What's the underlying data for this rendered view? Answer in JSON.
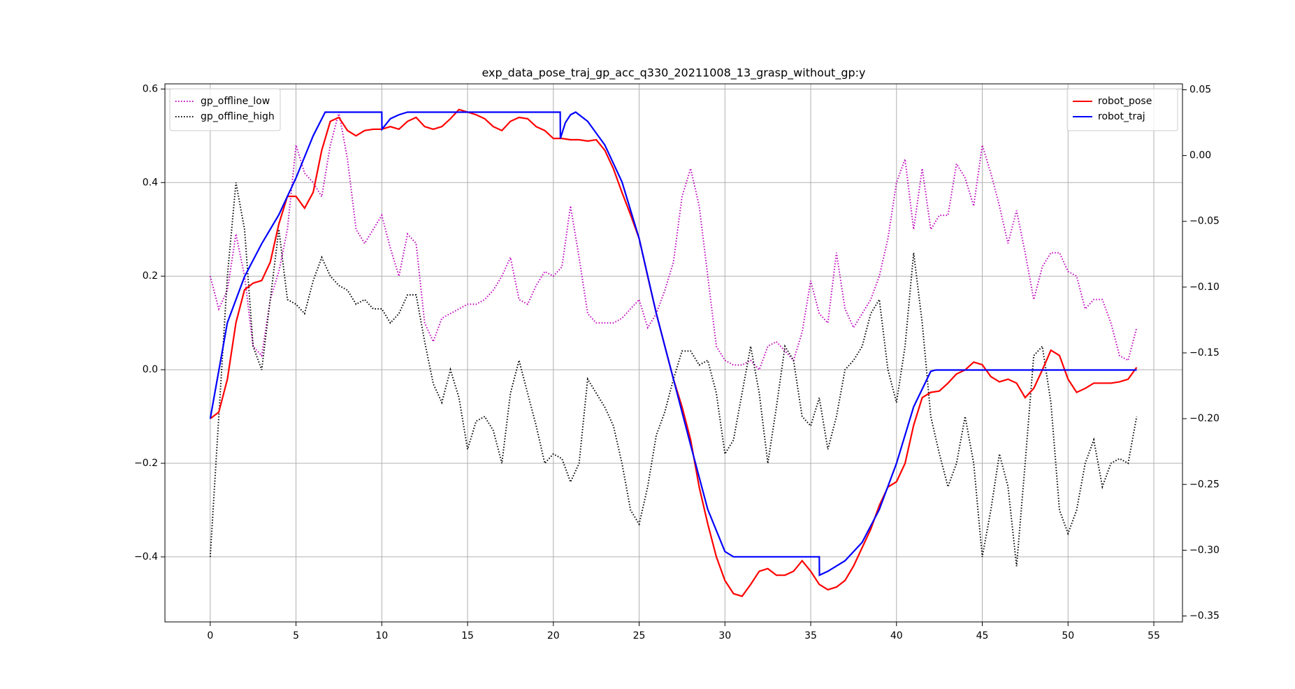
{
  "chart_data": {
    "type": "line",
    "title": "exp_data_pose_traj_gp_acc_q330_20211008_13_grasp_without_gp:y",
    "x": [
      0,
      0.5,
      1,
      1.5,
      2,
      2.5,
      3,
      3.5,
      4,
      4.5,
      5,
      5.5,
      6,
      6.5,
      7,
      7.5,
      8,
      8.5,
      9,
      9.5,
      10,
      10.5,
      11,
      11.5,
      12,
      12.5,
      13,
      13.5,
      14,
      14.5,
      15,
      15.5,
      16,
      16.5,
      17,
      17.5,
      18,
      18.5,
      19,
      19.5,
      20,
      20.5,
      21,
      21.5,
      22,
      22.5,
      23,
      23.5,
      24,
      24.5,
      25,
      25.5,
      26,
      26.5,
      27,
      27.5,
      28,
      28.5,
      29,
      29.5,
      30,
      30.5,
      31,
      31.5,
      32,
      32.5,
      33,
      33.5,
      34,
      34.5,
      35,
      35.5,
      36,
      36.5,
      37,
      37.5,
      38,
      38.5,
      39,
      39.5,
      40,
      40.5,
      41,
      41.5,
      42,
      42.5,
      43,
      43.5,
      44,
      44.5,
      45,
      45.5,
      46,
      46.5,
      47,
      47.5,
      48,
      48.5,
      49,
      49.5,
      50,
      50.5,
      51,
      51.5,
      52,
      52.5,
      53,
      53.5,
      54
    ],
    "series": [
      {
        "name": "gp_offline_low",
        "color": "#bf00bf",
        "style": "dotted",
        "axis": "y",
        "values": [
          0.2,
          0.13,
          0.17,
          0.29,
          0.2,
          0.05,
          0.03,
          0.15,
          0.21,
          0.3,
          0.48,
          0.42,
          0.4,
          0.37,
          0.48,
          0.55,
          0.45,
          0.3,
          0.27,
          0.3,
          0.33,
          0.26,
          0.2,
          0.29,
          0.27,
          0.1,
          0.06,
          0.11,
          0.12,
          0.13,
          0.14,
          0.14,
          0.15,
          0.17,
          0.2,
          0.24,
          0.15,
          0.14,
          0.18,
          0.21,
          0.2,
          0.22,
          0.35,
          0.24,
          0.12,
          0.1,
          0.1,
          0.1,
          0.11,
          0.13,
          0.15,
          0.09,
          0.12,
          0.17,
          0.23,
          0.37,
          0.43,
          0.35,
          0.2,
          0.05,
          0.02,
          0.01,
          0.01,
          0.02,
          0.0,
          0.05,
          0.06,
          0.04,
          0.02,
          0.08,
          0.19,
          0.12,
          0.1,
          0.25,
          0.13,
          0.09,
          0.12,
          0.15,
          0.2,
          0.28,
          0.4,
          0.45,
          0.3,
          0.43,
          0.3,
          0.33,
          0.33,
          0.44,
          0.41,
          0.35,
          0.48,
          0.42,
          0.35,
          0.27,
          0.34,
          0.25,
          0.15,
          0.22,
          0.25,
          0.25,
          0.21,
          0.2,
          0.13,
          0.15,
          0.15,
          0.1,
          0.03,
          0.02,
          0.09
        ]
      },
      {
        "name": "gp_offline_high",
        "color": "#000000",
        "style": "dotted",
        "axis": "y",
        "values": [
          -0.4,
          -0.1,
          0.2,
          0.4,
          0.3,
          0.05,
          0.0,
          0.15,
          0.3,
          0.15,
          0.14,
          0.12,
          0.19,
          0.24,
          0.2,
          0.18,
          0.17,
          0.14,
          0.15,
          0.13,
          0.13,
          0.1,
          0.12,
          0.16,
          0.16,
          0.06,
          -0.03,
          -0.07,
          0.0,
          -0.06,
          -0.17,
          -0.11,
          -0.1,
          -0.13,
          -0.2,
          -0.05,
          0.02,
          -0.05,
          -0.12,
          -0.2,
          -0.18,
          -0.19,
          -0.24,
          -0.2,
          -0.02,
          -0.05,
          -0.08,
          -0.12,
          -0.2,
          -0.3,
          -0.33,
          -0.25,
          -0.14,
          -0.09,
          -0.02,
          0.04,
          0.04,
          0.01,
          0.02,
          -0.05,
          -0.18,
          -0.15,
          -0.05,
          0.05,
          -0.05,
          -0.2,
          -0.08,
          0.05,
          0.02,
          -0.1,
          -0.12,
          -0.06,
          -0.17,
          -0.1,
          0.0,
          0.02,
          0.05,
          0.12,
          0.15,
          0.0,
          -0.07,
          0.05,
          0.25,
          0.1,
          -0.1,
          -0.18,
          -0.25,
          -0.2,
          -0.1,
          -0.2,
          -0.4,
          -0.3,
          -0.18,
          -0.25,
          -0.42,
          -0.2,
          0.03,
          0.05,
          -0.07,
          -0.3,
          -0.35,
          -0.3,
          -0.2,
          -0.15,
          -0.25,
          -0.2,
          -0.19,
          -0.2,
          -0.1
        ]
      },
      {
        "name": "robot_pose",
        "color": "#ff0000",
        "style": "solid",
        "axis": "y2",
        "values": [
          -0.2,
          -0.195,
          -0.17,
          -0.127,
          -0.102,
          -0.097,
          -0.095,
          -0.081,
          -0.052,
          -0.031,
          -0.031,
          -0.04,
          -0.028,
          0.004,
          0.026,
          0.029,
          0.019,
          0.015,
          0.019,
          0.02,
          0.02,
          0.022,
          0.02,
          0.026,
          0.029,
          0.022,
          0.02,
          0.022,
          0.028,
          0.035,
          0.033,
          0.031,
          0.028,
          0.022,
          0.019,
          0.026,
          0.029,
          0.028,
          0.022,
          0.019,
          0.013,
          0.013,
          0.012,
          0.012,
          0.011,
          0.012,
          0.004,
          -0.01,
          -0.028,
          -0.045,
          -0.063,
          -0.092,
          -0.12,
          -0.145,
          -0.17,
          -0.191,
          -0.216,
          -0.252,
          -0.28,
          -0.305,
          -0.323,
          -0.333,
          -0.335,
          -0.326,
          -0.316,
          -0.314,
          -0.319,
          -0.319,
          -0.316,
          -0.308,
          -0.316,
          -0.326,
          -0.33,
          -0.328,
          -0.323,
          -0.312,
          -0.298,
          -0.284,
          -0.266,
          -0.252,
          -0.248,
          -0.234,
          -0.205,
          -0.184,
          -0.18,
          -0.179,
          -0.173,
          -0.166,
          -0.163,
          -0.157,
          -0.159,
          -0.168,
          -0.172,
          -0.17,
          -0.173,
          -0.184,
          -0.177,
          -0.163,
          -0.148,
          -0.152,
          -0.17,
          -0.18,
          -0.177,
          -0.173,
          -0.173,
          -0.173,
          -0.172,
          -0.17,
          -0.161
        ]
      },
      {
        "name": "robot_traj",
        "color": "#0000ff",
        "style": "solid",
        "axis": "y2",
        "x": [
          0,
          1,
          2,
          3,
          4,
          5,
          6,
          6.7,
          10,
          10.01,
          10.5,
          11,
          11.5,
          20.4,
          20.41,
          20.7,
          21,
          21.3,
          22,
          23,
          24,
          25,
          26,
          27,
          28,
          29,
          30,
          30.5,
          35.5,
          35.51,
          36,
          37,
          38,
          39,
          40,
          41,
          42,
          42.3,
          54
        ],
        "values": [
          -0.2,
          -0.127,
          -0.092,
          -0.067,
          -0.045,
          -0.017,
          0.015,
          0.033,
          0.033,
          0.02,
          0.028,
          0.031,
          0.033,
          0.033,
          0.013,
          0.025,
          0.031,
          0.033,
          0.026,
          0.008,
          -0.02,
          -0.063,
          -0.12,
          -0.17,
          -0.22,
          -0.269,
          -0.301,
          -0.305,
          -0.305,
          -0.319,
          -0.316,
          -0.308,
          -0.294,
          -0.269,
          -0.234,
          -0.191,
          -0.164,
          -0.163,
          -0.163
        ]
      }
    ],
    "xlim": [
      -2.64,
      56.67
    ],
    "xticks": [
      0,
      5,
      10,
      15,
      20,
      25,
      30,
      35,
      40,
      45,
      50,
      55
    ],
    "ylim": [
      -0.539,
      0.611
    ],
    "yticks": [
      {
        "value": -0.4,
        "label": "−0.4"
      },
      {
        "value": -0.2,
        "label": "−0.2"
      },
      {
        "value": 0,
        "label": "0.0"
      },
      0.2,
      0.4,
      0.6
    ],
    "y2lim": [
      -0.3545,
      0.0545
    ],
    "y2ticks": [
      {
        "value": -0.35,
        "label": "−0.35"
      },
      {
        "value": -0.3,
        "label": "−0.30"
      },
      {
        "value": -0.25,
        "label": "−0.25"
      },
      {
        "value": -0.2,
        "label": "−0.20"
      },
      {
        "value": -0.15,
        "label": "−0.15"
      },
      {
        "value": -0.1,
        "label": "−0.10"
      },
      {
        "value": -0.05,
        "label": "−0.05"
      },
      {
        "value": 0,
        "label": "0.00"
      },
      0.05
    ],
    "grid": true,
    "legend": {
      "y": "upper left",
      "y2": "upper right"
    }
  }
}
